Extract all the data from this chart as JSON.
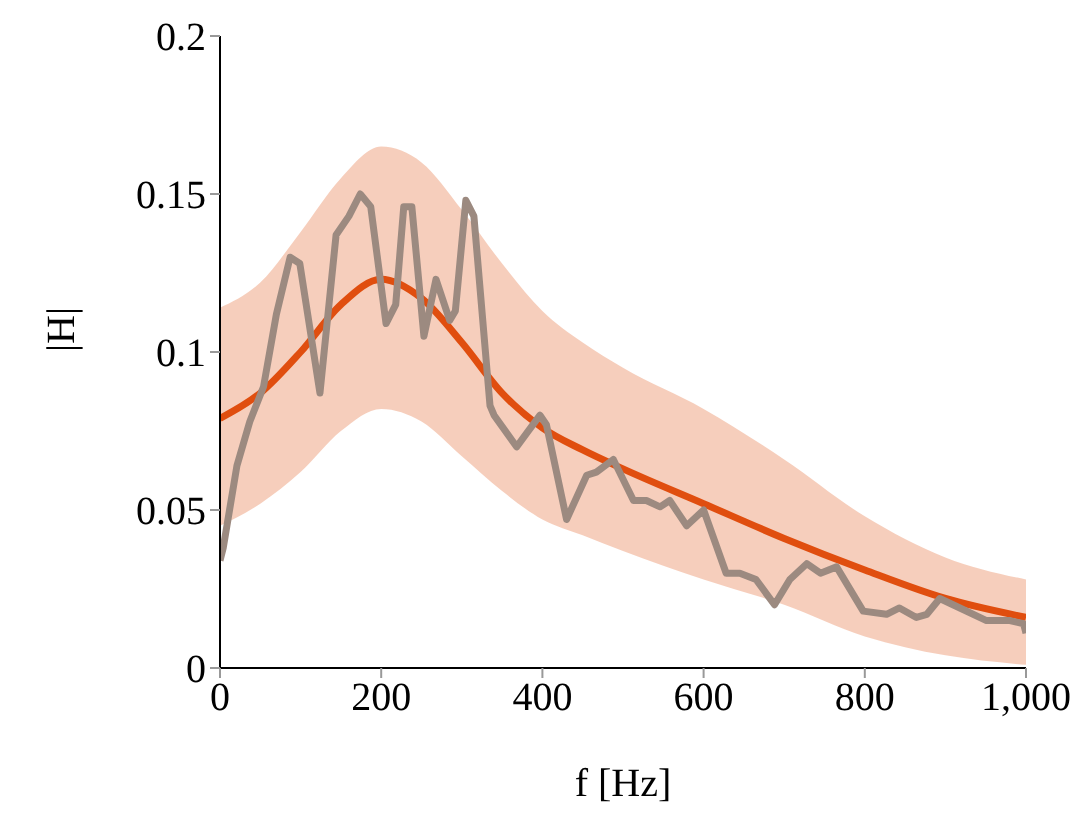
{
  "chart_data": {
    "type": "line",
    "xlabel": "f [Hz]",
    "ylabel": "|H|",
    "xlim": [
      0,
      1000
    ],
    "xticks": [
      0,
      200,
      400,
      600,
      800,
      {
        "value": 1000,
        "label": "1,000"
      }
    ],
    "ylim": [
      0,
      0.2
    ],
    "yticks": [
      0,
      0.05,
      0.1,
      0.15,
      0.2
    ],
    "grid": false,
    "marker": "none",
    "line_style": "solid",
    "series": [
      {
        "color": "#e04e0f",
        "x": [
          0,
          50,
          100,
          150,
          200,
          250,
          300,
          350,
          400,
          450,
          500,
          600,
          700,
          800,
          900,
          1000
        ],
        "values": [
          0.079,
          0.087,
          0.1,
          0.115,
          0.123,
          0.117,
          0.103,
          0.087,
          0.076,
          0.069,
          0.063,
          0.052,
          0.041,
          0.031,
          0.022,
          0.016
        ],
        "lower": [
          0.045,
          0.052,
          0.062,
          0.075,
          0.082,
          0.078,
          0.067,
          0.056,
          0.047,
          0.042,
          0.037,
          0.028,
          0.02,
          0.01,
          0.004,
          0.001
        ],
        "upper": [
          0.114,
          0.122,
          0.138,
          0.155,
          0.165,
          0.16,
          0.145,
          0.128,
          0.113,
          0.103,
          0.095,
          0.082,
          0.066,
          0.048,
          0.035,
          0.028
        ]
      },
      {
        "color": "#9c8a80",
        "x": [
          0,
          4,
          21,
          37,
          54,
          70,
          87,
          99,
          124,
          144,
          160,
          174,
          187,
          206,
          218,
          228,
          238,
          253,
          268,
          285,
          292,
          305,
          315,
          335,
          340,
          368,
          397,
          405,
          430,
          455,
          467,
          488,
          513,
          529,
          546,
          558,
          579,
          600,
          628,
          645,
          665,
          688,
          707,
          728,
          745,
          765,
          798,
          827,
          843,
          864,
          877,
          893,
          918,
          951,
          980,
          997,
          1000
        ],
        "values": [
          0.034,
          0.038,
          0.064,
          0.078,
          0.089,
          0.112,
          0.13,
          0.128,
          0.087,
          0.137,
          0.143,
          0.15,
          0.146,
          0.109,
          0.115,
          0.146,
          0.146,
          0.105,
          0.123,
          0.11,
          0.113,
          0.148,
          0.143,
          0.083,
          0.08,
          0.07,
          0.08,
          0.077,
          0.047,
          0.061,
          0.062,
          0.066,
          0.053,
          0.053,
          0.051,
          0.053,
          0.045,
          0.05,
          0.03,
          0.03,
          0.028,
          0.02,
          0.028,
          0.033,
          0.03,
          0.032,
          0.018,
          0.017,
          0.019,
          0.016,
          0.017,
          0.022,
          0.019,
          0.015,
          0.015,
          0.014,
          0.011
        ]
      }
    ]
  }
}
